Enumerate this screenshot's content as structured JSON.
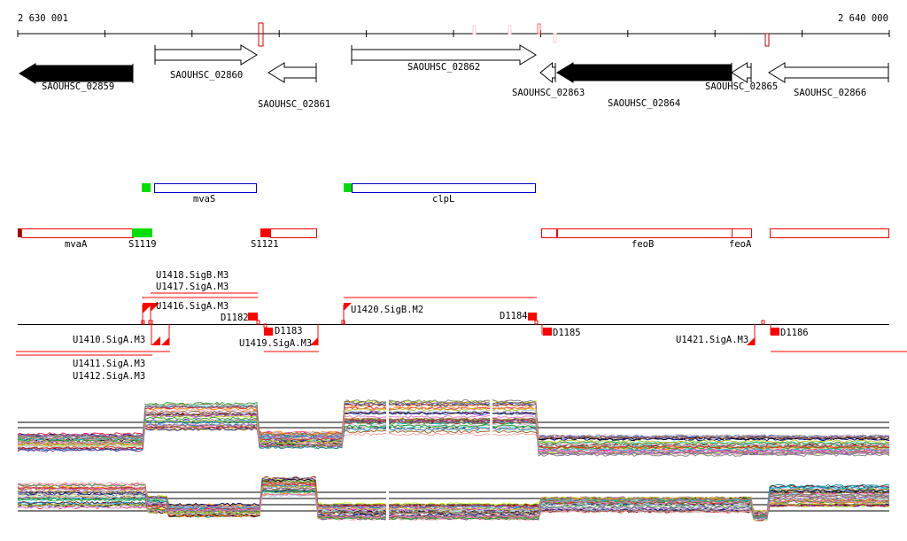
{
  "scale": {
    "start_label": "2 630 001",
    "end_label": "2 640 000"
  },
  "genes": [
    {
      "name": "SAOUHSC_02859",
      "strand": "-",
      "filled": true
    },
    {
      "name": "SAOUHSC_02860",
      "strand": "+",
      "filled": false
    },
    {
      "name": "SAOUHSC_02861",
      "strand": "-",
      "filled": false
    },
    {
      "name": "SAOUHSC_02862",
      "strand": "+",
      "filled": false
    },
    {
      "name": "SAOUHSC_02863",
      "strand": "-",
      "filled": false
    },
    {
      "name": "SAOUHSC_02864",
      "strand": "-",
      "filled": true
    },
    {
      "name": "SAOUHSC_02865",
      "strand": "-",
      "filled": false
    },
    {
      "name": "SAOUHSC_02866",
      "strand": "-",
      "filled": false
    }
  ],
  "operons_top": [
    {
      "label": "mvaS"
    },
    {
      "label": "clpL"
    }
  ],
  "operons_bottom": [
    {
      "label": "mvaA"
    },
    {
      "label": "S1119"
    },
    {
      "label": "S1121"
    },
    {
      "label": "feoB"
    },
    {
      "label": "feoA"
    }
  ],
  "features": {
    "above": [
      "U1416.SigA.M3",
      "U1417.SigA.M3",
      "U1418.SigB.M3",
      "D1182",
      "U1420.SigB.M2",
      "D1184"
    ],
    "below": [
      "U1410.SigA.M3",
      "U1411.SigA.M3",
      "U1412.SigA.M3",
      "D1183",
      "U1419.SigA.M3",
      "D1185",
      "U1421.SigA.M3",
      "D1186"
    ]
  },
  "colors": {
    "feature": "#ff0000",
    "operon_top": "#0000cc",
    "operon_green": "#00dd00",
    "series": [
      "#e6194b",
      "#3cb44b",
      "#ffe119",
      "#4363d8",
      "#f58231",
      "#911eb4",
      "#46f0f0",
      "#f032e6",
      "#bcf60c",
      "#fabebe",
      "#008080",
      "#e6beff",
      "#9a6324",
      "#800000",
      "#aaffc3",
      "#808000",
      "#ffd8b1",
      "#000075",
      "#808080",
      "#000000",
      "#ff7f00",
      "#1f78b4",
      "#33a02c",
      "#6a3d9a",
      "#b15928",
      "#a6cee3",
      "#fb9a99",
      "#cab2d6",
      "#8c564b",
      "#17becf",
      "#d62728",
      "#2ca02c",
      "#9467bd",
      "#bcbd22",
      "#7f7f7f",
      "#e377c2"
    ]
  }
}
